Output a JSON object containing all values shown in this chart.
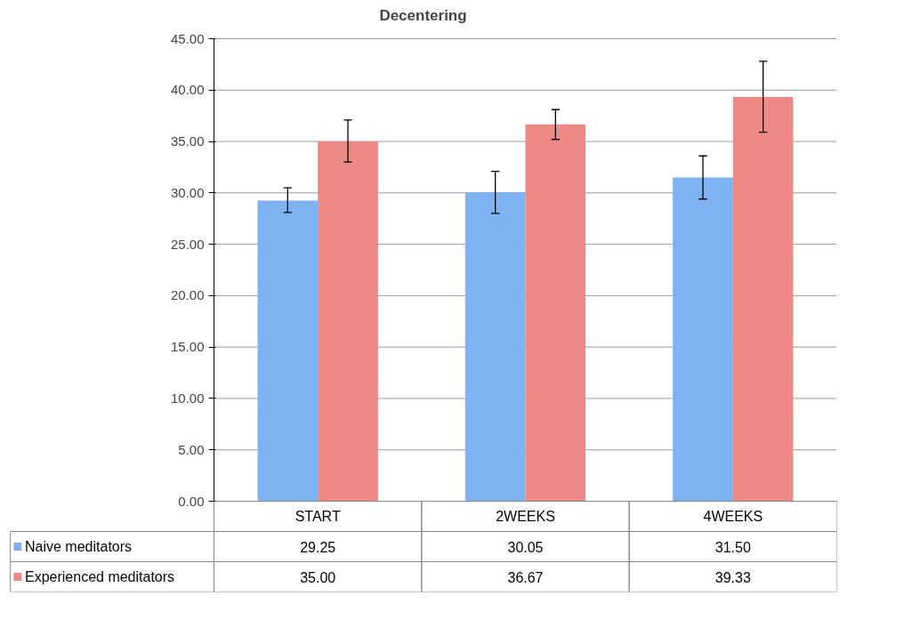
{
  "chart_data": {
    "type": "bar",
    "title": "Decentering",
    "categories": [
      "START",
      "2WEEKS",
      "4WEEKS"
    ],
    "series": [
      {
        "name": "Naive meditators",
        "color": "#7fb2f0",
        "values": [
          29.25,
          30.05,
          31.5
        ],
        "value_labels": [
          "29.25",
          "30.05",
          "31.50"
        ],
        "errors": [
          [
            28.1,
            30.5
          ],
          [
            28.0,
            32.1
          ],
          [
            29.4,
            33.6
          ]
        ]
      },
      {
        "name": "Experienced meditators",
        "color": "#ee8a85",
        "values": [
          35.0,
          36.67,
          39.33
        ],
        "value_labels": [
          "35.00",
          "36.67",
          "39.33"
        ],
        "errors": [
          [
            33.0,
            37.1
          ],
          [
            35.2,
            38.1
          ],
          [
            35.9,
            42.8
          ]
        ]
      }
    ],
    "ylim": [
      0,
      45
    ],
    "yticks": [
      {
        "value": 0,
        "label": "0.00"
      },
      {
        "value": 5,
        "label": "5.00"
      },
      {
        "value": 10,
        "label": "10.00"
      },
      {
        "value": 15,
        "label": "15.00"
      },
      {
        "value": 20,
        "label": "20.00"
      },
      {
        "value": 25,
        "label": "25.00"
      },
      {
        "value": 30,
        "label": "30.00"
      },
      {
        "value": 35,
        "label": "35.00"
      },
      {
        "value": 40,
        "label": "40.00"
      },
      {
        "value": 45,
        "label": "45.00"
      }
    ],
    "grid": "y",
    "legend": "bottom"
  }
}
